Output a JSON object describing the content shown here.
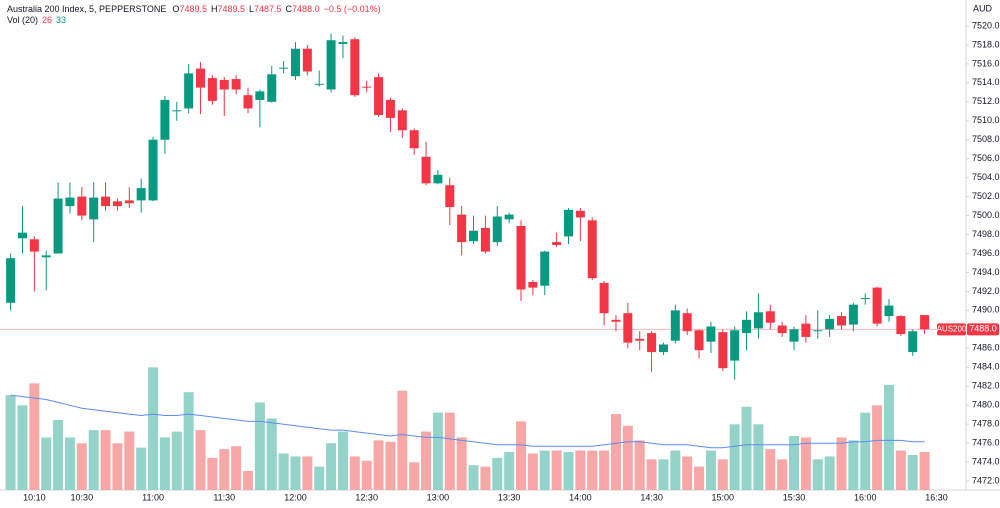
{
  "chart_data": {
    "type": "candlestick",
    "title": "Australia 200 Index, 5, PEPPERSTONE",
    "ohlc_legend": [
      {
        "label": "O",
        "value": "7489.5"
      },
      {
        "label": "H",
        "value": "7489.5"
      },
      {
        "label": "L",
        "value": "7487.5"
      },
      {
        "label": "C",
        "value": "7488.0"
      }
    ],
    "change": "−0.5 (−0.01%)",
    "currency": "AUD",
    "up_color": "#089981",
    "down_color": "#f23645",
    "categories": [
      null,
      null,
      "10:10",
      null,
      null,
      null,
      "10:30",
      null,
      null,
      null,
      null,
      null,
      "11:00",
      null,
      null,
      null,
      null,
      null,
      "11:30",
      null,
      null,
      null,
      null,
      null,
      "12:00",
      null,
      null,
      null,
      null,
      null,
      "12:30",
      null,
      null,
      null,
      null,
      null,
      "13:00",
      null,
      null,
      null,
      null,
      null,
      "13:30",
      null,
      null,
      null,
      null,
      null,
      "14:00",
      null,
      null,
      null,
      null,
      null,
      "14:30",
      null,
      null,
      null,
      null,
      null,
      "15:00",
      null,
      null,
      null,
      null,
      null,
      "15:30",
      null,
      null,
      null,
      null,
      null,
      "16:00",
      null,
      null,
      null,
      null,
      null,
      "16:30"
    ],
    "open": [
      7490.8,
      7497.6,
      7497.5,
      7495.6,
      7496.0,
      7501.0,
      7502.0,
      7499.6,
      7502.0,
      7501.5,
      7501.6,
      7501.6,
      7501.6,
      7508.0,
      7511.0,
      7511.3,
      7515.5,
      7514.5,
      7514.3,
      7514.4,
      7512.7,
      7512.2,
      7512.0,
      7515.5,
      7514.7,
      7517.6,
      7513.8,
      7513.3,
      7518.1,
      7518.6,
      7513.6,
      7514.6,
      7512.2,
      7511.1,
      7509.0,
      7506.2,
      7503.4,
      7503.2,
      7500.1,
      7497.3,
      7498.7,
      7497.2,
      7499.6,
      7498.9,
      7493.0,
      7492.6,
      7497.2,
      7497.8,
      7500.5,
      7499.5,
      7492.9,
      7489.0,
      7489.7,
      7487.0,
      7487.6,
      7485.6,
      7486.8,
      7489.7,
      7487.9,
      7486.7,
      7487.7,
      7484.7,
      7487.6,
      7488.1,
      7489.9,
      7488.4,
      7486.7,
      7488.6,
      7487.8,
      7488.0,
      7489.4,
      7488.5,
      7491.2,
      7492.4,
      7489.4,
      7489.4,
      7485.6,
      7489.5,
      null
    ],
    "high": [
      7496.0,
      7501.0,
      7497.8,
      7496.3,
      7503.5,
      7503.5,
      7503.0,
      7503.5,
      7503.5,
      7501.8,
      7503.0,
      7503.9,
      7508.3,
      7512.6,
      7512.0,
      7516.0,
      7516.2,
      7514.8,
      7514.6,
      7514.8,
      7513.5,
      7513.3,
      7515.8,
      7516.3,
      7518.3,
      7518.0,
      7515.3,
      7519.2,
      7519.0,
      7518.8,
      7514.2,
      7515.0,
      7512.4,
      7511.3,
      7509.2,
      7507.8,
      7504.8,
      7504.0,
      7501.0,
      7500.0,
      7500.0,
      7501.0,
      7500.3,
      7499.5,
      7493.2,
      7496.3,
      7498.2,
      7500.8,
      7500.8,
      7499.8,
      7493.1,
      7489.5,
      7490.8,
      7487.8,
      7487.8,
      7486.6,
      7490.6,
      7490.2,
      7488.0,
      7488.8,
      7488.0,
      7488.3,
      7489.9,
      7491.8,
      7490.6,
      7488.8,
      7488.3,
      7489.5,
      7490.0,
      7489.5,
      7489.8,
      7490.8,
      7491.8,
      7492.5,
      7491.2,
      7489.5,
      7488.0,
      7489.5,
      null
    ],
    "low": [
      7490.0,
      7496.0,
      7492.0,
      7492.1,
      7496.0,
      7500.2,
      7499.5,
      7497.2,
      7500.5,
      7500.5,
      7500.8,
      7500.3,
      7501.5,
      7506.5,
      7510.0,
      7510.8,
      7510.7,
      7511.7,
      7510.5,
      7512.8,
      7510.8,
      7509.3,
      7511.9,
      7515.0,
      7514.3,
      7514.8,
      7513.6,
      7513.0,
      7516.6,
      7512.5,
      7513.0,
      7510.4,
      7508.8,
      7508.2,
      7506.4,
      7503.2,
      7503.3,
      7499.0,
      7495.8,
      7497.0,
      7496.0,
      7496.8,
      7499.2,
      7491.0,
      7491.6,
      7491.6,
      7496.7,
      7497.0,
      7497.3,
      7493.2,
      7488.4,
      7487.8,
      7486.0,
      7485.8,
      7483.5,
      7485.3,
      7486.5,
      7487.4,
      7484.9,
      7485.5,
      7483.6,
      7482.7,
      7485.8,
      7487.0,
      7488.0,
      7487.2,
      7485.8,
      7486.6,
      7487.0,
      7487.2,
      7488.0,
      7487.8,
      7490.6,
      7488.3,
      7488.8,
      7487.3,
      7485.2,
      7487.5,
      null
    ],
    "close": [
      7495.5,
      7498.2,
      7496.2,
      7495.8,
      7501.8,
      7501.9,
      7500.0,
      7501.9,
      7501.0,
      7501.0,
      7501.3,
      7502.9,
      7508.0,
      7512.2,
      7511.1,
      7515.0,
      7513.5,
      7512.1,
      7513.3,
      7513.3,
      7511.3,
      7513.1,
      7514.9,
      7515.6,
      7517.6,
      7515.2,
      7513.9,
      7518.5,
      7518.3,
      7512.7,
      7513.5,
      7510.6,
      7510.3,
      7509.0,
      7507.1,
      7503.4,
      7504.3,
      7500.9,
      7497.2,
      7498.4,
      7496.2,
      7499.9,
      7500.1,
      7492.2,
      7492.4,
      7496.2,
      7496.9,
      7500.6,
      7499.8,
      7493.4,
      7489.7,
      7488.8,
      7486.6,
      7486.8,
      7485.6,
      7486.4,
      7490.0,
      7487.8,
      7485.8,
      7488.3,
      7483.9,
      7487.9,
      7489.0,
      7489.8,
      7488.7,
      7487.6,
      7488.0,
      7487.2,
      7487.9,
      7489.1,
      7488.4,
      7490.6,
      7491.3,
      7488.6,
      7490.5,
      7487.5,
      7487.8,
      7488.0,
      null
    ],
    "ylim": [
      7471.05,
      7522.74
    ],
    "yticks": [
      {
        "value": 7472,
        "label": "7472.0"
      },
      {
        "value": 7474,
        "label": "7474.0"
      },
      {
        "value": 7476,
        "label": "7476.0"
      },
      {
        "value": 7478,
        "label": "7478.0"
      },
      {
        "value": 7480,
        "label": "7480.0"
      },
      {
        "value": 7482,
        "label": "7482.0"
      },
      {
        "value": 7484,
        "label": "7484.0"
      },
      {
        "value": 7486,
        "label": "7486.0"
      },
      {
        "value": 7488,
        "label": "7488.0"
      },
      {
        "value": 7490,
        "label": "7490.0"
      },
      {
        "value": 7492,
        "label": "7492.0"
      },
      {
        "value": 7494,
        "label": "7494.0"
      },
      {
        "value": 7496,
        "label": "7496.0"
      },
      {
        "value": 7498,
        "label": "7498.0"
      },
      {
        "value": 7500,
        "label": "7500.0"
      },
      {
        "value": 7502,
        "label": "7502.0"
      },
      {
        "value": 7504,
        "label": "7504.0"
      },
      {
        "value": 7506,
        "label": "7506.0"
      },
      {
        "value": 7508,
        "label": "7508.0"
      },
      {
        "value": 7510,
        "label": "7510.0"
      },
      {
        "value": 7512,
        "label": "7512.0"
      },
      {
        "value": 7514,
        "label": "7514.0"
      },
      {
        "value": 7516,
        "label": "7516.0"
      },
      {
        "value": 7518,
        "label": "7518.0"
      },
      {
        "value": 7520,
        "label": "7520.0"
      }
    ],
    "grid": false,
    "last_price": {
      "name": "AUS200",
      "value": 7488.0,
      "label": "7488.0",
      "color": "#f23645"
    },
    "volume": {
      "title": "Vol (20)",
      "legend_values": [
        26,
        33
      ],
      "up_color": "#93d3ca",
      "down_color": "#f7a7a6",
      "ma_color": "#5b8def",
      "values": [
        65,
        58,
        73,
        36,
        48,
        36,
        32,
        41,
        41,
        32,
        40,
        29,
        84,
        36,
        40,
        67,
        41,
        22,
        28,
        30,
        13,
        60,
        49,
        25,
        23,
        23,
        16,
        32,
        40,
        23,
        20,
        34,
        33,
        68,
        19,
        40,
        53,
        53,
        36,
        17,
        16,
        22,
        26,
        47,
        25,
        27,
        27,
        26,
        27,
        27,
        27,
        52,
        44,
        34,
        21,
        21,
        27,
        23,
        16,
        27,
        21,
        45,
        57,
        45,
        28,
        21,
        37,
        36,
        21,
        23,
        36,
        34,
        53,
        58,
        72,
        27,
        24,
        26,
        null
      ],
      "ma_values": [
        65,
        64,
        63,
        62,
        60,
        58,
        56,
        55,
        54,
        53,
        52,
        51,
        52,
        51,
        51,
        52,
        51,
        50,
        49,
        48,
        47,
        47,
        46,
        45,
        44,
        43,
        42,
        41,
        41,
        40,
        39,
        38,
        37,
        38,
        37,
        36,
        36,
        35,
        34,
        33,
        32,
        31,
        31,
        31,
        30,
        30,
        30,
        30,
        30,
        30,
        31,
        32,
        33,
        33,
        32,
        31,
        31,
        31,
        30,
        29,
        29,
        30,
        31,
        31,
        31,
        31,
        31,
        32,
        32,
        32,
        32,
        33,
        33,
        34,
        34,
        34,
        33,
        33,
        null
      ]
    }
  }
}
